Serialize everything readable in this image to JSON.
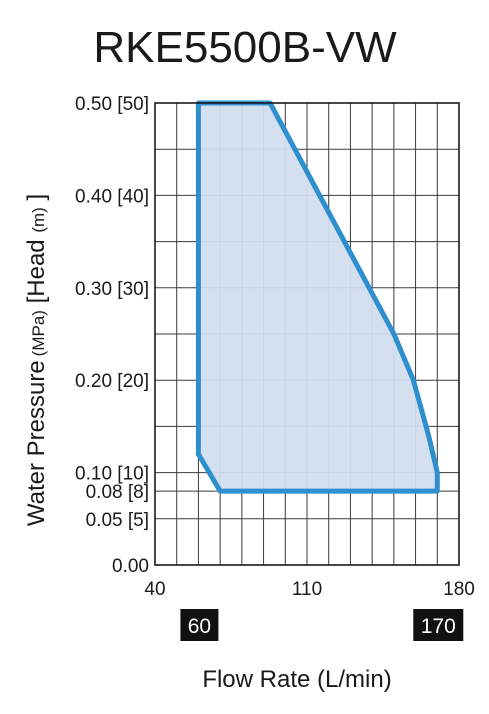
{
  "chart_data": {
    "type": "area",
    "title": "RKE5500B-VW",
    "xlabel": "Flow Rate (L/min)",
    "ylabel": {
      "main": "Water Pressure",
      "unit1": "(MPa)",
      "mid": " [Head ",
      "unit2": "(m)",
      "end": " ]"
    },
    "xlim": [
      40,
      180
    ],
    "ylim": [
      0,
      0.5
    ],
    "grid": true,
    "x_ticks": [
      {
        "value": 40,
        "label": "40"
      },
      {
        "value": 110,
        "label": "110"
      },
      {
        "value": 180,
        "label": "180"
      }
    ],
    "x_badges": [
      {
        "value": 60,
        "label": "60"
      },
      {
        "value": 170,
        "label": "170"
      }
    ],
    "y_ticks": [
      {
        "value": 0.0,
        "label": "0.00"
      },
      {
        "value": 0.05,
        "label": "0.05 [5]"
      },
      {
        "value": 0.08,
        "label": "0.08 [8]"
      },
      {
        "value": 0.1,
        "label": "0.10 [10]"
      },
      {
        "value": 0.2,
        "label": "0.20 [20]"
      },
      {
        "value": 0.3,
        "label": "0.30 [30]"
      },
      {
        "value": 0.4,
        "label": "0.40 [40]"
      },
      {
        "value": 0.5,
        "label": "0.50 [50]"
      }
    ],
    "series": [
      {
        "points": [
          {
            "x": 60,
            "y": 0.5
          },
          {
            "x": 93,
            "y": 0.5
          },
          {
            "x": 150,
            "y": 0.25
          },
          {
            "x": 159,
            "y": 0.2
          },
          {
            "x": 166,
            "y": 0.14
          },
          {
            "x": 170,
            "y": 0.1
          },
          {
            "x": 170,
            "y": 0.08
          },
          {
            "x": 70,
            "y": 0.08
          },
          {
            "x": 60,
            "y": 0.12
          }
        ]
      }
    ],
    "colors": {
      "fill": "#d2ddef",
      "stroke": "#2d8fcd",
      "grid": "#3a3a3a",
      "badge": "#111111"
    }
  }
}
